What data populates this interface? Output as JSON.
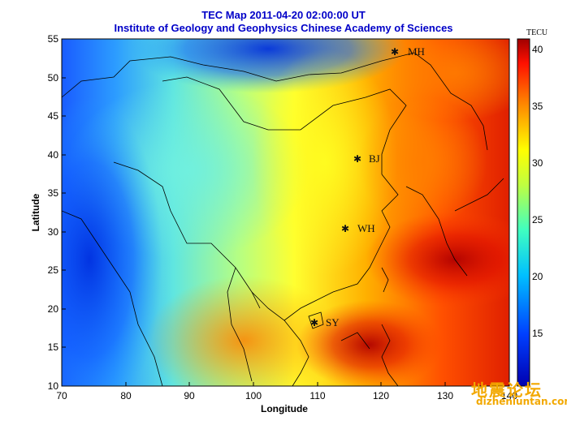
{
  "title_line1": "TEC Map 2011-04-20 02:00:00 UT",
  "title_line2": "Institute of Geology and Geophysics Chinese Academy of Sciences",
  "xlabel": "Longitude",
  "ylabel": "Latitude",
  "x_ticks": [
    "70",
    "80",
    "90",
    "100",
    "110",
    "120",
    "130",
    "140"
  ],
  "y_ticks": [
    "55",
    "50",
    "45",
    "40",
    "35",
    "30",
    "25",
    "20",
    "15",
    "10"
  ],
  "colorbar": {
    "unit": "TECU",
    "ticks": [
      "40",
      "35",
      "30",
      "25",
      "20",
      "15"
    ],
    "range": [
      12,
      41
    ]
  },
  "stations": [
    {
      "name": "MH",
      "lon": 122.5,
      "lat": 53.5
    },
    {
      "name": "BJ",
      "lon": 116.4,
      "lat": 39.9
    },
    {
      "name": "WH",
      "lon": 114.3,
      "lat": 30.6
    },
    {
      "name": "SY",
      "lon": 109.5,
      "lat": 18.3
    }
  ],
  "colors": {
    "title": "#0000c8",
    "watermark": "#f2a800"
  },
  "watermark": {
    "line1": "地震论坛",
    "line2": "dizhenluntan.com"
  }
}
